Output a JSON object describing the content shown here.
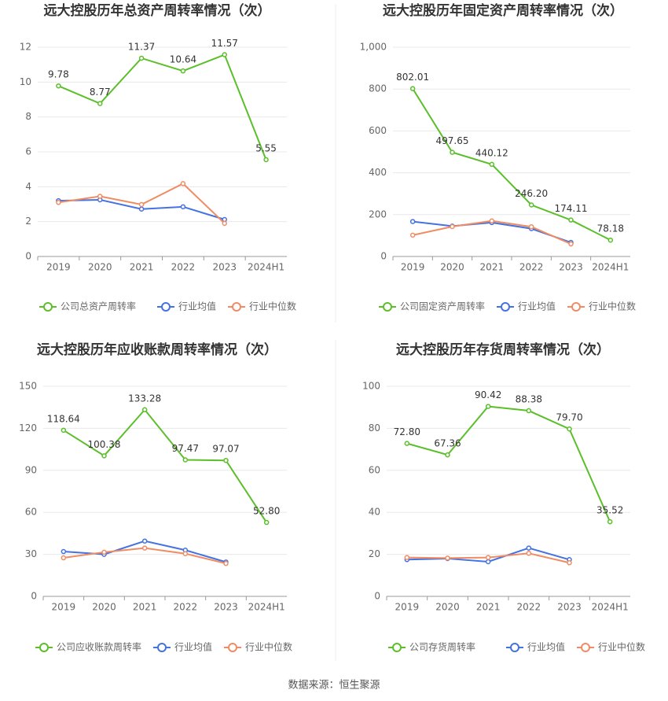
{
  "chart_data": [
    {
      "type": "line",
      "title": "远大控股历年总资产周转率情况（次）",
      "categories": [
        "2019",
        "2020",
        "2021",
        "2022",
        "2023",
        "2024H1"
      ],
      "ylim": [
        0,
        12
      ],
      "yticks": [
        0,
        2,
        4,
        6,
        8,
        10,
        12
      ],
      "grid": true,
      "series": [
        {
          "name": "公司总资产周转率",
          "color": "#5bbf2a",
          "values": [
            9.78,
            8.77,
            11.37,
            10.64,
            11.57,
            5.55
          ]
        },
        {
          "name": "行业均值",
          "color": "#4472e0",
          "values": [
            3.2,
            3.25,
            2.72,
            2.85,
            2.12,
            null
          ]
        },
        {
          "name": "行业中位数",
          "color": "#f08c64",
          "values": [
            3.1,
            3.45,
            2.98,
            4.18,
            1.9,
            null
          ]
        }
      ]
    },
    {
      "type": "line",
      "title": "远大控股历年固定资产周转率情况（次）",
      "categories": [
        "2019",
        "2020",
        "2021",
        "2022",
        "2023",
        "2024H1"
      ],
      "ylim": [
        0,
        1000
      ],
      "yticks": [
        0,
        200,
        400,
        600,
        800,
        {
          "value": 1000,
          "label": "1,000"
        }
      ],
      "grid": true,
      "series": [
        {
          "name": "公司固定资产周转率",
          "color": "#5bbf2a",
          "values": [
            802.01,
            497.65,
            440.12,
            246.2,
            174.11,
            78.18
          ],
          "value_labels": [
            "802.01",
            "497.65",
            "440.12",
            "246.20",
            "174.11",
            "78.18"
          ]
        },
        {
          "name": "行业均值",
          "color": "#4472e0",
          "values": [
            167,
            145,
            162,
            133,
            67,
            null
          ]
        },
        {
          "name": "行业中位数",
          "color": "#f08c64",
          "values": [
            102,
            143,
            170,
            142,
            60,
            null
          ]
        }
      ]
    },
    {
      "type": "line",
      "title": "远大控股历年应收账款周转率情况（次）",
      "categories": [
        "2019",
        "2020",
        "2021",
        "2022",
        "2023",
        "2024H1"
      ],
      "ylim": [
        0,
        150
      ],
      "yticks": [
        0,
        30,
        60,
        90,
        120,
        150
      ],
      "grid": true,
      "series": [
        {
          "name": "公司应收账款周转率",
          "color": "#5bbf2a",
          "values": [
            118.64,
            100.38,
            133.28,
            97.47,
            97.07,
            52.8
          ],
          "value_labels": [
            "118.64",
            "100.38",
            "133.28",
            "97.47",
            "97.07",
            "52.80"
          ]
        },
        {
          "name": "行业均值",
          "color": "#4472e0",
          "values": [
            32,
            30,
            39.5,
            33,
            24.5,
            null
          ]
        },
        {
          "name": "行业中位数",
          "color": "#f08c64",
          "values": [
            27.5,
            31.5,
            34.5,
            30.5,
            23.5,
            null
          ]
        }
      ]
    },
    {
      "type": "line",
      "title": "远大控股历年存货周转率情况（次）",
      "categories": [
        "2019",
        "2020",
        "2021",
        "2022",
        "2023",
        "2024H1"
      ],
      "ylim": [
        0,
        100
      ],
      "yticks": [
        0,
        20,
        40,
        60,
        80,
        100
      ],
      "grid": true,
      "series": [
        {
          "name": "公司存货周转率",
          "color": "#5bbf2a",
          "values": [
            72.8,
            67.36,
            90.42,
            88.38,
            79.7,
            35.52
          ],
          "value_labels": [
            "72.80",
            "67.36",
            "90.42",
            "88.38",
            "79.70",
            "35.52"
          ]
        },
        {
          "name": "行业均值",
          "color": "#4472e0",
          "values": [
            17.5,
            18,
            16.5,
            23,
            17.5,
            null
          ]
        },
        {
          "name": "行业中位数",
          "color": "#f08c64",
          "values": [
            18.5,
            18.2,
            18.5,
            20.5,
            16,
            null
          ]
        }
      ]
    }
  ],
  "source": "数据来源：恒生聚源"
}
